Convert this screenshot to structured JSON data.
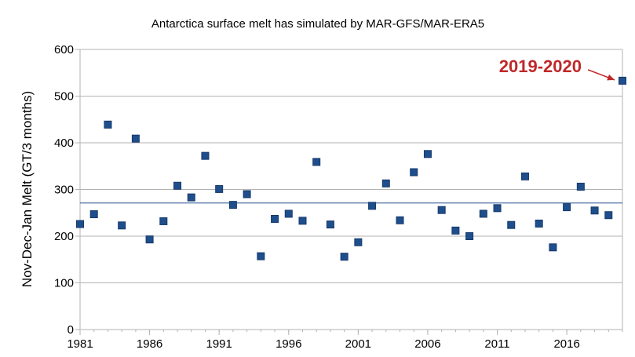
{
  "chart_data": {
    "type": "scatter",
    "title": "Antarctica surface melt has simulated by MAR-GFS/MAR-ERA5",
    "xlabel": "",
    "ylabel": "Nov-Dec-Jan Melt (GT/3 months)",
    "xlim": [
      1981,
      2020
    ],
    "ylim": [
      0,
      600
    ],
    "xticks": [
      1981,
      1986,
      1991,
      1996,
      2001,
      2006,
      2011,
      2016
    ],
    "yticks": [
      0,
      100,
      200,
      300,
      400,
      500,
      600
    ],
    "grid": "horizontal",
    "mean_line": 271,
    "marker_color": "#1f4e8c",
    "mean_line_color": "#1f4e8c",
    "annotation": {
      "text": "2019-2020",
      "color": "#c0282a",
      "points_to_year": 2020
    },
    "series": [
      {
        "x": [
          1981,
          1982,
          1983,
          1984,
          1985,
          1986,
          1987,
          1988,
          1989,
          1990,
          1991,
          1992,
          1993,
          1994,
          1995,
          1996,
          1997,
          1998,
          1999,
          2000,
          2001,
          2002,
          2003,
          2004,
          2005,
          2006,
          2007,
          2008,
          2009,
          2010,
          2011,
          2012,
          2013,
          2014,
          2015,
          2016,
          2017,
          2018,
          2019,
          2020
        ],
        "y": [
          226,
          247,
          439,
          223,
          409,
          193,
          232,
          308,
          283,
          372,
          301,
          267,
          290,
          157,
          237,
          248,
          233,
          359,
          225,
          156,
          187,
          265,
          313,
          234,
          337,
          376,
          256,
          212,
          200,
          248,
          260,
          224,
          328,
          227,
          176,
          262,
          306,
          255,
          245,
          533
        ]
      }
    ]
  }
}
